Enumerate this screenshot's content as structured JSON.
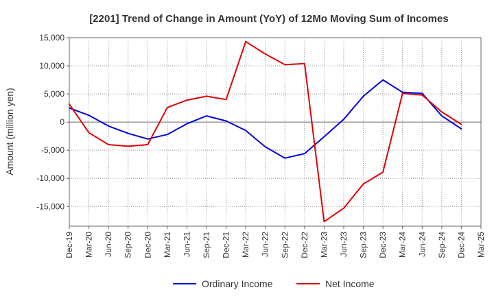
{
  "chart_data": {
    "type": "line",
    "title": "[2201]  Trend of Change in Amount (YoY) of 12Mo Moving Sum of Incomes",
    "xlabel": "",
    "ylabel": "Amount (million yen)",
    "ylim": [
      -18500,
      15000
    ],
    "yticks": [
      15000,
      10000,
      5000,
      0,
      -5000,
      -10000,
      -15000
    ],
    "ytick_labels": [
      "15,000",
      "10,000",
      "5,000",
      "0",
      "-5,000",
      "-10,000",
      "-15,000"
    ],
    "categories": [
      "Dec-19",
      "Mar-20",
      "Jun-20",
      "Sep-20",
      "Dec-20",
      "Mar-21",
      "Jun-21",
      "Sep-21",
      "Dec-21",
      "Mar-22",
      "Jun-22",
      "Sep-22",
      "Dec-22",
      "Mar-23",
      "Jun-23",
      "Sep-23",
      "Dec-23",
      "Mar-24",
      "Jun-24",
      "Sep-24",
      "Dec-24",
      "Mar-25"
    ],
    "grid": true,
    "legend": "bottom",
    "series": [
      {
        "name": "Ordinary Income",
        "color": "#0000dd",
        "values": [
          2500,
          1200,
          -700,
          -2000,
          -3000,
          -2200,
          -300,
          1100,
          200,
          -1500,
          -4400,
          -6400,
          -5600,
          -2600,
          500,
          4600,
          7500,
          5300,
          5100,
          1100,
          -1200,
          null
        ]
      },
      {
        "name": "Net Income",
        "color": "#dd0000",
        "values": [
          3200,
          -1900,
          -4000,
          -4300,
          -4000,
          2600,
          3900,
          4600,
          4000,
          14300,
          12100,
          10200,
          10400,
          -17700,
          -15300,
          -11000,
          -8900,
          5100,
          4800,
          1800,
          -400,
          null
        ]
      }
    ]
  }
}
